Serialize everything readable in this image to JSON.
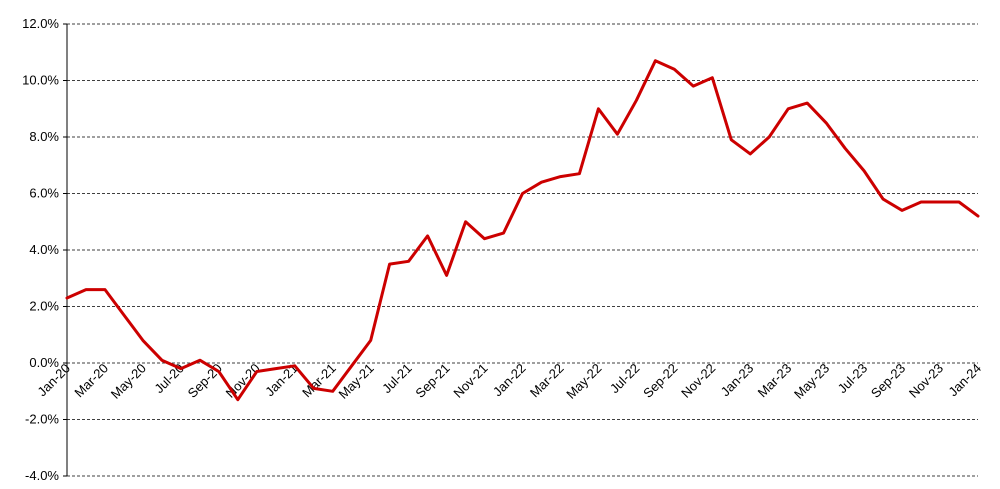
{
  "chart_data": {
    "type": "line",
    "title": "",
    "xlabel": "",
    "ylabel": "",
    "ylim": [
      -4.0,
      12.0
    ],
    "y_ticks": [
      "-4.0%",
      "-2.0%",
      "0.0%",
      "2.0%",
      "4.0%",
      "6.0%",
      "8.0%",
      "10.0%",
      "12.0%"
    ],
    "y_tick_values": [
      -4,
      -2,
      0,
      2,
      4,
      6,
      8,
      10,
      12
    ],
    "x_tick_labels": [
      "Jan-20",
      "Mar-20",
      "May-20",
      "Jul-20",
      "Sep-20",
      "Nov-20",
      "Jan-21",
      "Mar-21",
      "May-21",
      "Jul-21",
      "Sep-21",
      "Nov-21",
      "Jan-22",
      "Mar-22",
      "May-22",
      "Jul-22",
      "Sep-22",
      "Nov-22",
      "Jan-23",
      "Mar-23",
      "May-23",
      "Jul-23",
      "Sep-23",
      "Nov-23",
      "Jan-24"
    ],
    "grid": true,
    "x": [
      "Jan-20",
      "Feb-20",
      "Mar-20",
      "Apr-20",
      "May-20",
      "Jun-20",
      "Jul-20",
      "Aug-20",
      "Sep-20",
      "Oct-20",
      "Nov-20",
      "Dec-20",
      "Jan-21",
      "Feb-21",
      "Mar-21",
      "Apr-21",
      "May-21",
      "Jun-21",
      "Jul-21",
      "Aug-21",
      "Sep-21",
      "Oct-21",
      "Nov-21",
      "Dec-21",
      "Jan-22",
      "Feb-22",
      "Mar-22",
      "Apr-22",
      "May-22",
      "Jun-22",
      "Jul-22",
      "Aug-22",
      "Sep-22",
      "Oct-22",
      "Nov-22",
      "Dec-22",
      "Jan-23",
      "Feb-23",
      "Mar-23",
      "Apr-23",
      "May-23",
      "Jun-23",
      "Jul-23",
      "Aug-23",
      "Sep-23",
      "Oct-23",
      "Nov-23",
      "Dec-23",
      "Jan-24"
    ],
    "series": [
      {
        "color": "#cc0000",
        "values": [
          2.3,
          2.6,
          2.6,
          1.7,
          0.8,
          0.1,
          -0.2,
          0.1,
          -0.3,
          -1.3,
          -0.3,
          -0.2,
          -0.1,
          -0.9,
          -1.0,
          -0.1,
          0.8,
          3.5,
          3.6,
          4.5,
          3.1,
          5.0,
          4.4,
          4.6,
          6.0,
          6.4,
          6.6,
          6.7,
          9.0,
          8.1,
          9.3,
          10.7,
          10.4,
          9.8,
          10.1,
          7.9,
          7.4,
          8.0,
          9.0,
          9.2,
          8.5,
          7.6,
          6.8,
          5.8,
          5.4,
          5.7,
          5.7,
          5.7,
          5.2
        ]
      }
    ]
  }
}
